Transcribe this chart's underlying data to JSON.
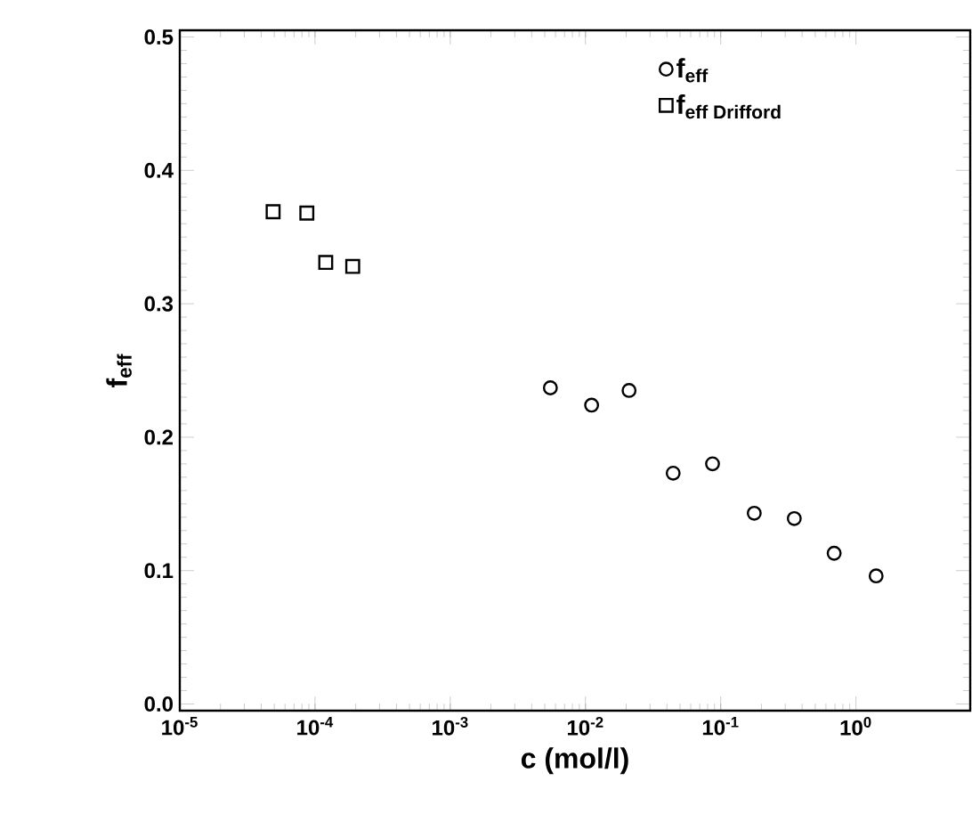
{
  "chart_data": {
    "type": "scatter",
    "xlabel": "c (mol/l)",
    "ylabel": "f$_{eff}$",
    "log": "x",
    "xlim": [
      1e-05,
      7
    ],
    "ylim": [
      -0.005,
      0.505
    ],
    "xticks": [
      {
        "value": 1e-05,
        "label": "10$^{-5}$"
      },
      {
        "value": 0.0001,
        "label": "10$^{-4}$"
      },
      {
        "value": 0.001,
        "label": "10$^{-3}$"
      },
      {
        "value": 0.01,
        "label": "10$^{-2}$"
      },
      {
        "value": 0.1,
        "label": "10$^{-1}$"
      },
      {
        "value": 1,
        "label": "10$^{0}$"
      }
    ],
    "yticks": [
      {
        "value": 0,
        "label": "0.0"
      },
      0.1,
      0.2,
      0.3,
      0.4,
      0.5
    ],
    "legend": "top right",
    "grid": false,
    "series": [
      {
        "name": "\\text{f}_{\\text{eff}}",
        "color": "#000000",
        "marker": "circle",
        "x": [
          0.0055,
          0.0111,
          0.021,
          0.0445,
          0.087,
          0.177,
          0.35,
          0.69,
          1.41
        ],
        "values": [
          0.237,
          0.224,
          0.235,
          0.173,
          0.18,
          0.143,
          0.139,
          0.113,
          0.096
        ]
      },
      {
        "name": "\\text{f}_{\\text{eff Drifford}}",
        "color": "#000000",
        "marker": "square",
        "x": [
          4.9e-05,
          8.7e-05,
          0.00012,
          0.00019
        ],
        "values": [
          0.369,
          0.368,
          0.331,
          0.328
        ]
      }
    ]
  }
}
